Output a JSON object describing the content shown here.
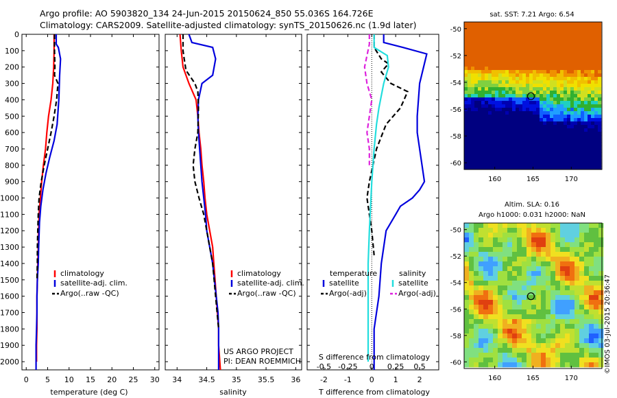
{
  "header": {
    "line1": "Argo profile: AO 5903820_134 24-Jun-2015 20150624_850 55.036S 164.726E",
    "line2": "Climatology: CARS2009. Satellite-adjusted climatology: synTS_20150626.nc (1.9d later)"
  },
  "credits": {
    "project": "US ARGO PROJECT",
    "pi": "PI: DEAN ROEMMICH",
    "stamp": "©IMOS 03-Jul-2015 20:36:47"
  },
  "colors": {
    "climatology": "#ff0000",
    "satellite": "#0000dd",
    "argo": "#000000",
    "sal_satellite": "#22dddd",
    "sal_argo": "#dd22dd"
  },
  "chart_data": [
    {
      "type": "line",
      "xlabel": "temperature (deg C)",
      "xlim": [
        -1,
        31
      ],
      "xticks": [
        "0",
        "5",
        "10",
        "15",
        "20",
        "25",
        "30"
      ],
      "ylim": [
        0,
        2050
      ],
      "yticks": [
        "0",
        "100",
        "200",
        "300",
        "400",
        "500",
        "600",
        "700",
        "800",
        "900",
        "1000",
        "1100",
        "1200",
        "1300",
        "1400",
        "1500",
        "1600",
        "1700",
        "1800",
        "1900",
        "2000"
      ],
      "legend": [
        "climatology",
        "satellite-adj. clim.",
        "Argo(..raw -QC)"
      ],
      "series": [
        {
          "name": "climatology",
          "style": "solid",
          "color": "#ff0000",
          "x": [
            6.5,
            6.5,
            6.4,
            6.2,
            5.8,
            5.2,
            4.8,
            4.5,
            4.0,
            3.6,
            3.3,
            3.0,
            2.9,
            2.8,
            2.7,
            2.6,
            2.5,
            2.5,
            2.5,
            2.4,
            2.4
          ],
          "y": [
            0,
            100,
            200,
            300,
            400,
            500,
            600,
            700,
            800,
            900,
            1000,
            1100,
            1200,
            1300,
            1400,
            1500,
            1600,
            1700,
            1800,
            1900,
            2000
          ]
        },
        {
          "name": "satellite-adj. clim.",
          "style": "solid",
          "color": "#0000dd",
          "x": [
            7.0,
            7.0,
            7.5,
            8.0,
            7.8,
            7.6,
            7.2,
            6.5,
            5.5,
            4.6,
            3.9,
            3.4,
            3.1,
            2.9,
            2.8,
            2.6,
            2.5,
            2.5,
            2.4,
            2.3,
            2.3,
            2.3
          ],
          "y": [
            0,
            60,
            80,
            150,
            250,
            400,
            550,
            650,
            750,
            850,
            950,
            1050,
            1150,
            1300,
            1400,
            1500,
            1600,
            1700,
            1800,
            1900,
            2000,
            2050
          ]
        },
        {
          "name": "Argo(..raw -QC)",
          "style": "dashed",
          "color": "#000000",
          "x": [
            6.6,
            6.6,
            6.7,
            6.6,
            7.4,
            7.1,
            6.5,
            5.8,
            5.0,
            4.2,
            3.5,
            3.0,
            2.8,
            2.7,
            2.6,
            2.6,
            2.5
          ],
          "y": [
            0,
            100,
            200,
            250,
            300,
            400,
            500,
            600,
            700,
            800,
            900,
            1000,
            1100,
            1200,
            1300,
            1400,
            1500
          ]
        }
      ]
    },
    {
      "type": "line",
      "xlabel": "salinity",
      "xlim": [
        33.8,
        36.1
      ],
      "xticks": [
        "34",
        "34.5",
        "35",
        "35.5",
        "36"
      ],
      "ylim": [
        0,
        2050
      ],
      "legend": [
        "climatology",
        "satellite-adj. clim.",
        "Argo(..raw -QC)"
      ],
      "series": [
        {
          "name": "climatology",
          "style": "solid",
          "color": "#ff0000",
          "x": [
            34.05,
            34.07,
            34.1,
            34.2,
            34.32,
            34.35,
            34.37,
            34.4,
            34.42,
            34.45,
            34.47,
            34.5,
            34.55,
            34.6,
            34.62,
            34.64,
            34.66,
            34.68,
            34.7,
            34.7,
            34.72,
            34.73
          ],
          "y": [
            0,
            100,
            200,
            300,
            400,
            500,
            600,
            700,
            800,
            900,
            1000,
            1100,
            1200,
            1300,
            1400,
            1500,
            1600,
            1700,
            1800,
            1900,
            2000,
            2050
          ]
        },
        {
          "name": "satellite-adj. clim.",
          "style": "solid",
          "color": "#0000dd",
          "x": [
            34.2,
            34.25,
            34.6,
            34.65,
            34.6,
            34.42,
            34.36,
            34.35,
            34.36,
            34.38,
            34.4,
            34.42,
            34.45,
            34.48,
            34.5,
            34.55,
            34.6,
            34.63,
            34.66,
            34.69,
            34.7,
            34.7
          ],
          "y": [
            0,
            50,
            80,
            150,
            250,
            300,
            400,
            500,
            600,
            700,
            800,
            900,
            1000,
            1100,
            1200,
            1300,
            1400,
            1500,
            1600,
            1700,
            1800,
            2050
          ]
        },
        {
          "name": "Argo(..raw -QC)",
          "style": "dashed",
          "color": "#000000",
          "x": [
            34.1,
            34.1,
            34.12,
            34.15,
            34.3,
            34.35,
            34.36,
            34.35,
            34.3,
            34.27,
            34.3,
            34.37,
            34.45,
            34.5,
            34.55,
            34.6,
            34.65,
            34.7
          ],
          "y": [
            0,
            100,
            150,
            220,
            300,
            350,
            450,
            600,
            700,
            800,
            900,
            1000,
            1100,
            1200,
            1300,
            1400,
            1600,
            1800
          ]
        }
      ]
    },
    {
      "type": "line",
      "xlabel": "T difference from climatology",
      "xlabel_top": "S difference from climatology",
      "xlim": [
        -2.7,
        2.8
      ],
      "xticks": [
        "-2",
        "-1",
        "0",
        "1",
        "2"
      ],
      "xticks_top": [
        "-0.5",
        "-0.25",
        "0",
        "0.25",
        "0.5"
      ],
      "ylim": [
        0,
        2050
      ],
      "legend_titles": [
        "temperature",
        "salinity"
      ],
      "legend": [
        "satellite",
        "Argo(-adj)",
        "satellite",
        "Argo(-adj)"
      ],
      "series": [
        {
          "name": "satellite",
          "group": "temperature",
          "style": "solid",
          "color": "#0000dd",
          "x": [
            0.5,
            0.5,
            1.3,
            2.3,
            2.0,
            1.9,
            1.9,
            2.0,
            2.1,
            2.2,
            2.0,
            1.7,
            1.2,
            1.0,
            0.6,
            0.4,
            0.3,
            0.2,
            0.1,
            0.1,
            0.1
          ],
          "y": [
            0,
            50,
            80,
            120,
            300,
            500,
            600,
            700,
            800,
            900,
            950,
            1000,
            1050,
            1100,
            1200,
            1400,
            1600,
            1700,
            1800,
            1900,
            2050
          ]
        },
        {
          "name": "Argo(-adj)",
          "group": "temperature",
          "style": "dashed",
          "color": "#000000",
          "x": [
            0.1,
            0.1,
            0.4,
            0.7,
            0.4,
            0.8,
            1.5,
            1.2,
            0.6,
            0.2,
            -0.1,
            -0.2,
            -0.1,
            0.0,
            0.1
          ],
          "y": [
            0,
            80,
            150,
            180,
            230,
            300,
            350,
            450,
            550,
            700,
            900,
            1000,
            1100,
            1200,
            1350
          ]
        },
        {
          "name": "satellite",
          "group": "salinity",
          "style": "solid",
          "color": "#22dddd",
          "x": [
            0.1,
            0.1,
            0.65,
            0.7,
            0.5,
            0.3,
            0.2,
            0.1,
            0.0,
            -0.1,
            -0.15,
            -0.15,
            -0.15,
            -0.15,
            -0.15
          ],
          "y": [
            0,
            80,
            130,
            200,
            300,
            450,
            550,
            700,
            900,
            1200,
            1400,
            1600,
            1800,
            1900,
            2000
          ]
        },
        {
          "name": "Argo(-adj)",
          "group": "salinity",
          "style": "dashed",
          "color": "#dd22dd",
          "x": [
            -0.1,
            -0.1,
            -0.3,
            -0.2,
            0.0,
            -0.1,
            -0.2,
            -0.1,
            -0.1
          ],
          "y": [
            0,
            60,
            200,
            300,
            400,
            500,
            600,
            700,
            800
          ]
        }
      ]
    },
    {
      "type": "heatmap",
      "title": "sat. SST: 7.21  Argo: 6.54",
      "xticks": [
        "160",
        "165",
        "170"
      ],
      "yticks": [
        "-50",
        "-52",
        "-54",
        "-56",
        "-58",
        "-60"
      ],
      "xlim": [
        156,
        174
      ],
      "ylim": [
        -60.5,
        -49.5
      ],
      "marker": {
        "lon": 164.726,
        "lat": -55.036
      }
    },
    {
      "type": "heatmap",
      "title": "Altim. SLA: 0.16",
      "subtitle": "Argo h1000: 0.031 h2000: NaN",
      "xticks": [
        "160",
        "165",
        "170"
      ],
      "yticks": [
        "-50",
        "-52",
        "-54",
        "-56",
        "-58",
        "-60"
      ],
      "xlim": [
        156,
        174
      ],
      "ylim": [
        -60.5,
        -49.5
      ],
      "marker": {
        "lon": 164.726,
        "lat": -55.036
      }
    }
  ]
}
